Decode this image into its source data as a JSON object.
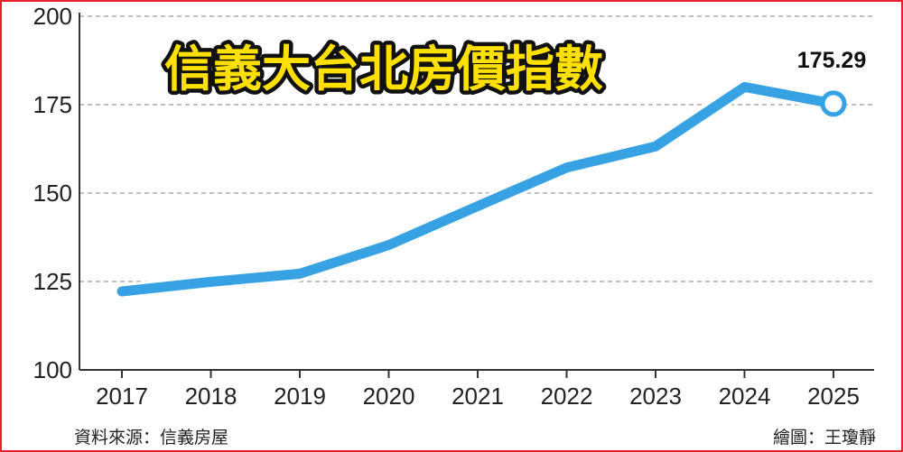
{
  "chart_data": {
    "type": "line",
    "title": "信義大台北房價指數",
    "x": [
      "2017",
      "2018",
      "2019",
      "2020",
      "2021",
      "2022",
      "2023",
      "2024",
      "2025"
    ],
    "series": [
      {
        "values": [
          122.2,
          124.9,
          127.2,
          135.3,
          146.3,
          157.2,
          163.2,
          180.0,
          175.29
        ]
      }
    ],
    "yticks": [
      100,
      125,
      150,
      175,
      200
    ],
    "ylim": [
      100,
      200
    ],
    "grid": "horizontal dashed",
    "last_point_label": "175.29",
    "colors": {
      "line": "#36a2e3",
      "title_fill": "#ffe000",
      "border": "#e8202a",
      "grid": "#9a9a9a"
    }
  },
  "footer": {
    "source": "資料來源：信義房屋",
    "credit": "繪圖：王瓊靜"
  }
}
